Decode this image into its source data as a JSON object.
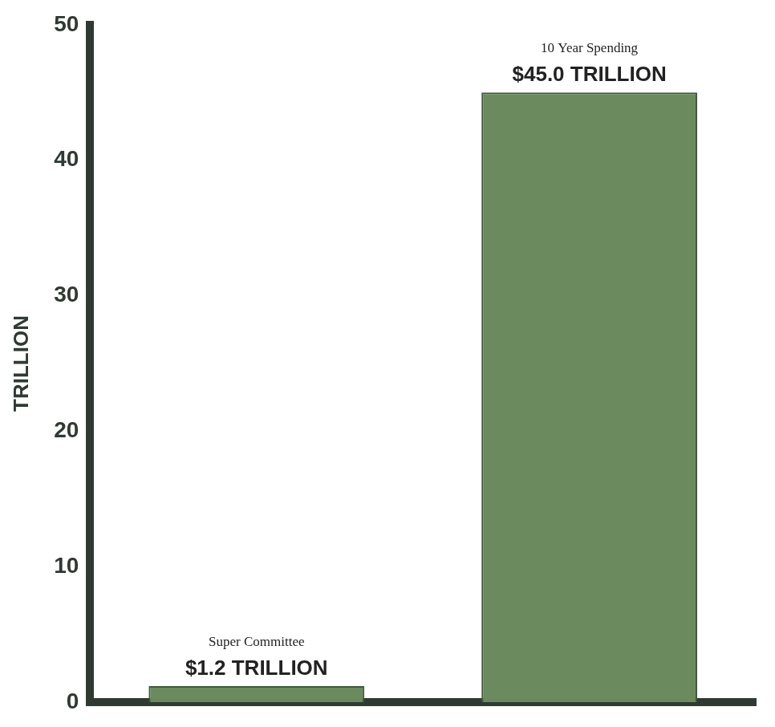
{
  "chart_data": {
    "type": "bar",
    "y_label": "TRILLION",
    "categories": [
      "Super Committee",
      "10 Year Spending"
    ],
    "values": [
      1.2,
      45.0
    ],
    "value_labels": [
      "$1.2 TRILLION",
      "$45.0 TRILLION"
    ],
    "color": "#6b8a5e",
    "ylim": [
      0,
      50
    ],
    "yticks": [
      0,
      10,
      20,
      30,
      40,
      50
    ],
    "grid": false,
    "data_labels": true,
    "tick_labels": "y"
  }
}
